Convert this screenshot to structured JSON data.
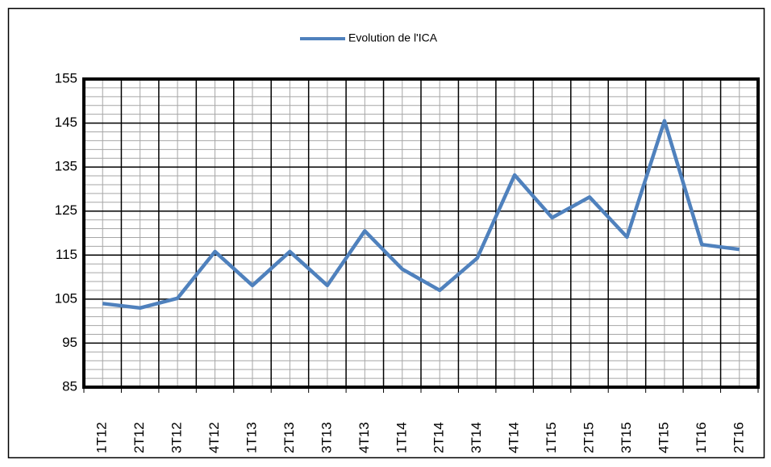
{
  "chart_data": {
    "type": "line",
    "categories": [
      "1T12",
      "2T12",
      "3T12",
      "4T12",
      "1T13",
      "2T13",
      "3T13",
      "4T13",
      "1T14",
      "2T14",
      "3T14",
      "4T14",
      "1T15",
      "2T15",
      "3T15",
      "4T15",
      "1T16",
      "2T16"
    ],
    "series": [
      {
        "name": "Evolution de l'ICA",
        "color": "#4f81bd",
        "values": [
          104,
          103,
          105.2,
          115.8,
          108.1,
          115.8,
          108.1,
          120.5,
          111.8,
          107,
          114.3,
          133.2,
          123.5,
          128.2,
          119.1,
          145.5,
          117.4,
          116.3
        ]
      }
    ],
    "ylim": [
      85,
      155
    ],
    "yticks": [
      85,
      95,
      105,
      115,
      125,
      135,
      145,
      155
    ],
    "grid": true,
    "minor_grid": true,
    "legend": "top"
  }
}
